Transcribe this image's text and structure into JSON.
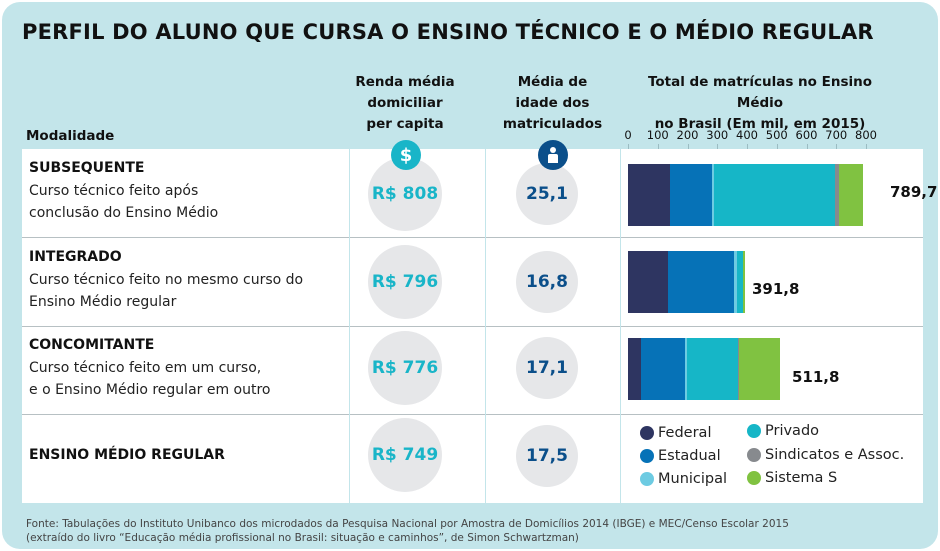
{
  "title": "PERFIL DO ALUNO QUE CURSA O ENSINO TÉCNICO E O MÉDIO REGULAR",
  "headers": {
    "modalidade": "Modalidade",
    "renda": [
      "Renda média",
      "domiciliar",
      "per capita"
    ],
    "idade": [
      "Média de",
      "idade dos",
      "matriculados"
    ],
    "total": [
      "Total de matrículas no Ensino Médio",
      "no Brasil (Em mil, em 2015)"
    ]
  },
  "icons": {
    "renda": "dollar-icon",
    "idade": "person-icon"
  },
  "rows": [
    {
      "name": "SUBSEQUENTE",
      "desc": [
        "Curso técnico feito após",
        "conclusão do Ensino Médio"
      ],
      "renda": "R$ 808",
      "idade": "25,1",
      "total_label": "789,7"
    },
    {
      "name": "INTEGRADO",
      "desc": [
        "Curso técnico feito no mesmo curso do",
        "Ensino Médio regular"
      ],
      "renda": "R$ 796",
      "idade": "16,8",
      "total_label": "391,8"
    },
    {
      "name": "CONCOMITANTE",
      "desc": [
        "Curso técnico feito em um curso,",
        "e o Ensino Médio regular em outro"
      ],
      "renda": "R$ 776",
      "idade": "17,1",
      "total_label": "511,8"
    },
    {
      "name": "ENSINO MÉDIO REGULAR",
      "desc": [],
      "renda": "R$ 749",
      "idade": "17,5",
      "total_label": ""
    }
  ],
  "colors": {
    "background": "#c3e5ea",
    "renda_accent": "#19b5c8",
    "idade_accent": "#0b4f8a"
  },
  "chart_data": {
    "type": "bar",
    "orientation": "horizontal-stacked",
    "title": "Total de matrículas no Ensino Médio no Brasil (Em mil, em 2015)",
    "xlabel": "",
    "ylabel": "",
    "xlim": [
      0,
      800
    ],
    "xticks": [
      0,
      100,
      200,
      300,
      400,
      500,
      600,
      700,
      800
    ],
    "categories": [
      "SUBSEQUENTE",
      "INTEGRADO",
      "CONCOMITANTE"
    ],
    "totals": [
      789.7,
      391.8,
      511.8
    ],
    "series": [
      {
        "name": "Federal",
        "color": "#2e3561",
        "values": [
          141,
          134,
          44
        ]
      },
      {
        "name": "Estadual",
        "color": "#0672b7",
        "values": [
          143,
          222,
          148
        ]
      },
      {
        "name": "Municipal",
        "color": "#6dcbe2",
        "values": [
          6,
          10,
          6
        ]
      },
      {
        "name": "Privado",
        "color": "#16b6c7",
        "values": [
          406,
          20,
          171
        ]
      },
      {
        "name": "Sindicatos e Assoc.",
        "color": "#878a8e",
        "values": [
          13,
          2,
          3
        ]
      },
      {
        "name": "Sistema S",
        "color": "#80c241",
        "values": [
          81,
          4,
          140
        ]
      }
    ],
    "legend": {
      "position": "bottom-right",
      "items": [
        "Federal",
        "Estadual",
        "Municipal",
        "Privado",
        "Sindicatos e Assoc.",
        "Sistema S"
      ]
    },
    "grid": false
  },
  "source": [
    "Fonte: Tabulações do Instituto Unibanco dos microdados da Pesquisa Nacional por Amostra de Domicílios 2014 (IBGE) e MEC/Censo Escolar 2015",
    "(extraído do livro “Educação média profissional no Brasil: situação e caminhos”, de Simon Schwartzman)"
  ]
}
